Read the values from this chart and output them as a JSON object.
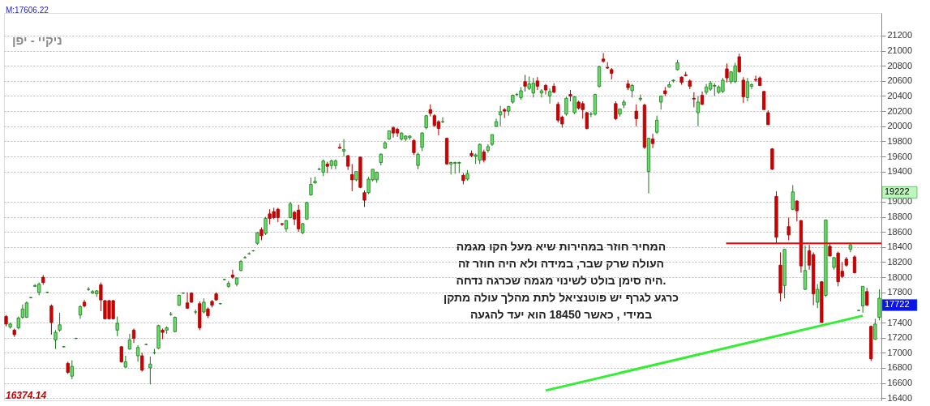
{
  "chart_data": {
    "type": "candlestick",
    "title": "ניקיי - יפן",
    "categories": [
      null,
      null,
      null,
      null,
      null,
      null,
      null,
      null,
      null,
      null,
      null,
      null,
      null,
      null,
      null,
      null,
      null,
      null,
      null,
      null,
      null,
      null,
      null,
      null,
      null,
      null,
      null,
      null,
      null,
      null,
      null,
      null,
      null,
      null,
      null,
      null,
      null,
      null,
      null,
      null,
      null,
      null,
      null,
      null,
      null,
      null,
      null,
      null,
      null,
      null,
      null,
      null,
      null,
      null,
      null,
      null,
      null,
      null,
      null,
      null,
      null,
      null,
      null,
      null,
      null,
      null,
      null,
      null,
      null,
      null,
      null,
      null,
      null,
      null,
      null,
      null,
      null,
      null,
      null,
      null,
      null,
      null,
      null,
      null,
      null,
      null,
      null,
      null,
      null,
      null,
      null,
      null,
      null,
      null,
      null,
      null,
      null,
      null,
      null,
      null,
      null,
      null,
      null,
      null,
      null,
      null,
      null,
      null,
      null,
      null,
      null,
      null,
      null,
      null,
      null,
      null,
      null,
      null,
      null,
      null,
      null,
      null,
      null,
      null,
      null,
      null,
      null,
      null,
      null,
      null,
      null,
      null,
      null,
      null,
      null,
      null,
      null,
      null,
      null,
      null,
      null,
      null,
      null,
      null,
      null,
      null,
      null,
      null,
      null,
      null,
      null,
      null,
      null,
      null,
      null,
      null,
      null,
      null,
      null,
      null,
      null,
      null,
      null,
      null,
      null,
      null,
      null,
      null,
      null,
      null,
      null,
      null,
      null,
      null,
      null,
      null,
      null,
      null,
      null,
      null,
      null,
      null,
      null,
      null,
      null,
      null,
      null,
      null,
      null,
      null,
      null,
      null,
      null,
      null,
      null,
      null,
      null,
      null,
      null,
      null,
      null,
      null,
      null,
      null,
      null,
      null,
      null,
      null,
      null,
      null,
      null,
      null,
      null
    ],
    "ohlc": [
      [
        17480,
        17500,
        17350,
        17380
      ],
      [
        17340,
        17400,
        17320,
        17380
      ],
      [
        17300,
        17320,
        17210,
        17240
      ],
      [
        17330,
        17480,
        17310,
        17460
      ],
      [
        17470,
        17640,
        17450,
        17580
      ],
      [
        17470,
        17680,
        17460,
        17660
      ],
      [
        17730,
        17740,
        17720,
        17730
      ],
      [
        17880,
        17910,
        17870,
        17890
      ],
      [
        17800,
        17930,
        17760,
        17910
      ],
      [
        18000,
        18030,
        17900,
        17930
      ],
      [
        17800,
        17810,
        17790,
        17800
      ],
      [
        17620,
        17640,
        17240,
        17400
      ],
      [
        17170,
        17300,
        17050,
        17270
      ],
      [
        17300,
        17530,
        17280,
        17370
      ],
      [
        17080,
        17090,
        17070,
        17080
      ],
      [
        16860,
        16880,
        16720,
        16740
      ],
      [
        16690,
        16900,
        16650,
        16820
      ],
      [
        17190,
        17200,
        17180,
        17190
      ],
      [
        17500,
        17630,
        17450,
        17610
      ],
      [
        17670,
        17700,
        17600,
        17620
      ],
      [
        17840,
        17870,
        17820,
        17840
      ],
      [
        17790,
        17830,
        17780,
        17810
      ],
      [
        17780,
        17830,
        17740,
        17820
      ],
      [
        17900,
        17930,
        17550,
        17700
      ],
      [
        17690,
        17700,
        17440,
        17450
      ],
      [
        17690,
        17700,
        17440,
        17450
      ],
      [
        17690,
        17700,
        17440,
        17450
      ],
      [
        17300,
        17480,
        17220,
        17390
      ],
      [
        17080,
        17090,
        16870,
        16880
      ],
      [
        16810,
        16960,
        16800,
        16880
      ],
      [
        17050,
        17250,
        17040,
        17170
      ],
      [
        17300,
        17320,
        17130,
        17190
      ],
      [
        16960,
        17100,
        16880,
        17070
      ],
      [
        16960,
        17000,
        16750,
        16770
      ],
      [
        17110,
        17120,
        17100,
        17110
      ],
      [
        16800,
        16950,
        16580,
        16850
      ],
      [
        17000,
        17050,
        16980,
        17000
      ],
      [
        17060,
        17370,
        17050,
        17360
      ],
      [
        17300,
        17320,
        17180,
        17270
      ],
      [
        17300,
        17350,
        17250,
        17330
      ],
      [
        17510,
        17540,
        17490,
        17510
      ],
      [
        17280,
        17480,
        17270,
        17470
      ],
      [
        17630,
        17770,
        17620,
        17760
      ],
      [
        17790,
        17800,
        17780,
        17790
      ],
      [
        17660,
        17800,
        17580,
        17590
      ],
      [
        17790,
        17800,
        17660,
        17670
      ],
      [
        17540,
        17570,
        17510,
        17540
      ],
      [
        17650,
        17680,
        17300,
        17330
      ],
      [
        17540,
        17720,
        17520,
        17670
      ],
      [
        17580,
        17600,
        17460,
        17490
      ],
      [
        17680,
        17700,
        17600,
        17630
      ],
      [
        17780,
        17800,
        17690,
        17700
      ],
      [
        17650,
        17660,
        17640,
        17650
      ],
      [
        17970,
        17980,
        17960,
        17970
      ],
      [
        17880,
        17950,
        17860,
        17920
      ],
      [
        18030,
        18100,
        17980,
        18000
      ],
      [
        17910,
        18000,
        17880,
        17990
      ],
      [
        18090,
        18230,
        18080,
        18210
      ],
      [
        18260,
        18280,
        18250,
        18260
      ],
      [
        18310,
        18330,
        18300,
        18310
      ],
      [
        18350,
        18360,
        18340,
        18350
      ],
      [
        18450,
        18600,
        18430,
        18590
      ],
      [
        18630,
        18660,
        18490,
        18550
      ],
      [
        18580,
        18800,
        18560,
        18780
      ],
      [
        18840,
        18900,
        18700,
        18780
      ],
      [
        18870,
        18920,
        18770,
        18790
      ],
      [
        18900,
        18920,
        18730,
        18790
      ],
      [
        18710,
        18720,
        18680,
        18700
      ],
      [
        18640,
        18760,
        18600,
        18750
      ],
      [
        18790,
        19000,
        18780,
        18970
      ],
      [
        18860,
        18880,
        18690,
        18770
      ],
      [
        18890,
        18960,
        18600,
        18640
      ],
      [
        18590,
        18720,
        18570,
        18710
      ],
      [
        18770,
        19000,
        18760,
        18990
      ],
      [
        19090,
        19320,
        19080,
        19230
      ],
      [
        19250,
        19330,
        19240,
        19270
      ],
      [
        19430,
        19450,
        19420,
        19430
      ],
      [
        19390,
        19560,
        19340,
        19540
      ],
      [
        19500,
        19530,
        19380,
        19470
      ],
      [
        19480,
        19560,
        19430,
        19540
      ],
      [
        19480,
        19560,
        19430,
        19540
      ],
      [
        19720,
        19770,
        19700,
        19710
      ],
      [
        19670,
        19830,
        19600,
        19690
      ],
      [
        19610,
        19620,
        19420,
        19470
      ],
      [
        19360,
        19500,
        19140,
        19290
      ],
      [
        19290,
        19400,
        19270,
        19400
      ],
      [
        19590,
        19600,
        19180,
        19190
      ],
      [
        19120,
        19150,
        18930,
        19020
      ],
      [
        19120,
        19330,
        19100,
        19300
      ],
      [
        19290,
        19430,
        19270,
        19430
      ],
      [
        19290,
        19400,
        19250,
        19390
      ],
      [
        19520,
        19640,
        19480,
        19630
      ],
      [
        19710,
        19800,
        19700,
        19780
      ],
      [
        19830,
        19940,
        19820,
        19940
      ],
      [
        19980,
        20000,
        19850,
        19910
      ],
      [
        19960,
        19980,
        19860,
        19910
      ],
      [
        19830,
        19920,
        19810,
        19910
      ],
      [
        19830,
        19880,
        19800,
        19870
      ],
      [
        19850,
        19880,
        19820,
        19870
      ],
      [
        19810,
        19830,
        19620,
        19650
      ],
      [
        19480,
        19650,
        19430,
        19630
      ],
      [
        19720,
        19920,
        19670,
        19910
      ],
      [
        19980,
        20150,
        19960,
        20140
      ],
      [
        20220,
        20290,
        20130,
        20170
      ],
      [
        20140,
        20160,
        19990,
        20010
      ],
      [
        20060,
        20080,
        19880,
        19970
      ],
      [
        20060,
        20120,
        20040,
        20060
      ],
      [
        19840,
        19850,
        19490,
        19500
      ],
      [
        19500,
        19530,
        19360,
        19520
      ],
      [
        19510,
        19530,
        19370,
        19520
      ],
      [
        19510,
        19530,
        19380,
        19520
      ],
      [
        19350,
        19380,
        19230,
        19280
      ],
      [
        19300,
        19420,
        19280,
        19370
      ],
      [
        19640,
        19680,
        19590,
        19610
      ],
      [
        19600,
        19640,
        19500,
        19620
      ],
      [
        19550,
        19770,
        19500,
        19760
      ],
      [
        19660,
        19690,
        19520,
        19550
      ],
      [
        19680,
        19760,
        19650,
        19730
      ],
      [
        19760,
        19890,
        19740,
        19890
      ],
      [
        20000,
        20100,
        19990,
        20060
      ],
      [
        20150,
        20270,
        20000,
        20190
      ],
      [
        20220,
        20240,
        20110,
        20200
      ],
      [
        20200,
        20270,
        20140,
        20260
      ],
      [
        20320,
        20420,
        20300,
        20410
      ],
      [
        20420,
        20440,
        20400,
        20420
      ],
      [
        20380,
        20520,
        20350,
        20470
      ],
      [
        20590,
        20680,
        20460,
        20530
      ],
      [
        20500,
        20660,
        20480,
        20560
      ],
      [
        20440,
        20640,
        20380,
        20570
      ],
      [
        20600,
        20650,
        20480,
        20530
      ],
      [
        20440,
        20490,
        20380,
        20470
      ],
      [
        20540,
        20560,
        20420,
        20480
      ],
      [
        20400,
        20500,
        20300,
        20460
      ],
      [
        20530,
        20570,
        20440,
        20450
      ],
      [
        20290,
        20320,
        20050,
        20080
      ],
      [
        20120,
        20140,
        19980,
        20030
      ],
      [
        20160,
        20390,
        20140,
        20370
      ],
      [
        20420,
        20480,
        20330,
        20400
      ],
      [
        20180,
        20400,
        20160,
        20390
      ],
      [
        20320,
        20340,
        20220,
        20240
      ],
      [
        20300,
        20330,
        20100,
        20220
      ],
      [
        20180,
        20190,
        19960,
        19970
      ],
      [
        20160,
        20190,
        20120,
        20160
      ],
      [
        20160,
        20430,
        20140,
        20420
      ],
      [
        20530,
        20800,
        20510,
        20790
      ],
      [
        20890,
        20970,
        20840,
        20860
      ],
      [
        20780,
        20850,
        20760,
        20770
      ],
      [
        20750,
        20770,
        20620,
        20700
      ],
      [
        20300,
        20330,
        20080,
        20100
      ],
      [
        20160,
        20230,
        20130,
        20230
      ],
      [
        20280,
        20350,
        20240,
        20320
      ],
      [
        20560,
        20610,
        20480,
        20510
      ],
      [
        20470,
        20560,
        20380,
        20540
      ],
      [
        20200,
        20290,
        20000,
        20100
      ],
      [
        20360,
        20420,
        20330,
        20370
      ],
      [
        20280,
        20300,
        19700,
        19720
      ],
      [
        19400,
        19850,
        19110,
        19840
      ],
      [
        19830,
        19900,
        19710,
        19770
      ],
      [
        19920,
        20140,
        19900,
        20080
      ],
      [
        20320,
        20400,
        20220,
        20400
      ],
      [
        20470,
        20520,
        20400,
        20430
      ],
      [
        20520,
        20590,
        20510,
        20550
      ],
      [
        20600,
        20620,
        20580,
        20610
      ],
      [
        20750,
        20880,
        20740,
        20840
      ],
      [
        20650,
        20660,
        20550,
        20580
      ],
      [
        20680,
        20720,
        20660,
        20670
      ],
      [
        20600,
        20620,
        20490,
        20530
      ],
      [
        20370,
        20450,
        20250,
        20360
      ],
      [
        20180,
        20400,
        20000,
        20320
      ],
      [
        20410,
        20460,
        20280,
        20290
      ],
      [
        20450,
        20560,
        20420,
        20520
      ],
      [
        20490,
        20600,
        20470,
        20570
      ],
      [
        20530,
        20570,
        20400,
        20540
      ],
      [
        20450,
        20540,
        20430,
        20520
      ],
      [
        20460,
        20640,
        20440,
        20610
      ],
      [
        20760,
        20830,
        20580,
        20640
      ],
      [
        20590,
        20730,
        20560,
        20720
      ],
      [
        20590,
        20840,
        20570,
        20800
      ],
      [
        20920,
        20960,
        20710,
        20720
      ],
      [
        20610,
        20650,
        20310,
        20390
      ],
      [
        20380,
        20640,
        20330,
        20590
      ],
      [
        20530,
        20570,
        20490,
        20550
      ],
      [
        20620,
        20670,
        20590,
        20610
      ],
      [
        20640,
        20660,
        20530,
        20540
      ],
      [
        20460,
        20470,
        20220,
        20220
      ],
      [
        20180,
        20210,
        20020,
        20020
      ],
      [
        19700,
        19710,
        19420,
        19430
      ],
      [
        19070,
        19140,
        18440,
        18530
      ],
      [
        18160,
        18330,
        17680,
        17790
      ],
      [
        17890,
        18370,
        17720,
        18370
      ],
      [
        18670,
        18790,
        18490,
        18560
      ],
      [
        18900,
        19220,
        18890,
        19130
      ],
      [
        19010,
        19020,
        18740,
        18880
      ],
      [
        18750,
        18760,
        18060,
        18150
      ],
      [
        17840,
        18420,
        17830,
        18090
      ],
      [
        18350,
        18430,
        18100,
        18160
      ],
      [
        18300,
        18330,
        17630,
        17780
      ],
      [
        17670,
        17910,
        17590,
        17840
      ],
      [
        17940,
        17950,
        17400,
        17400
      ],
      [
        17760,
        18760,
        17740,
        18760
      ],
      [
        18410,
        18440,
        18280,
        18280
      ],
      [
        18130,
        18270,
        18100,
        18260
      ],
      [
        18320,
        18340,
        17880,
        17940
      ],
      [
        18080,
        18200,
        17990,
        18010
      ],
      [
        18240,
        18270,
        18140,
        18160
      ],
      [
        18370,
        18460,
        18330,
        18430
      ],
      [
        18270,
        18290,
        18050,
        18060
      ],
      [
        17560,
        17570,
        17550,
        17560
      ],
      [
        17620,
        17880,
        17530,
        17880
      ],
      [
        17810,
        17860,
        17620,
        17630
      ],
      [
        17350,
        17360,
        16890,
        16920
      ],
      [
        17180,
        17450,
        17170,
        17380
      ],
      [
        17470,
        17840,
        17430,
        17722
      ]
    ],
    "series": [
      {
        "type": "line",
        "color": "#33ee33",
        "values": [
          null,
          null,
          null,
          null,
          null,
          null,
          null,
          null,
          null,
          null,
          null,
          null,
          null,
          null,
          null,
          null,
          null,
          null,
          null,
          null,
          null,
          null,
          null,
          null,
          null,
          null,
          null,
          null,
          null,
          null,
          null,
          null,
          null,
          null,
          null,
          null,
          null,
          null,
          null,
          null,
          null,
          null,
          null,
          null,
          null,
          null,
          null,
          null,
          null,
          null,
          null,
          null,
          null,
          null,
          null,
          null,
          null,
          null,
          null,
          null,
          null,
          null,
          null,
          null,
          null,
          null,
          null,
          null,
          null,
          null,
          null,
          null,
          null,
          null,
          null,
          null,
          null,
          null,
          null,
          null,
          null,
          null,
          null,
          null,
          null,
          null,
          null,
          null,
          null,
          null,
          null,
          null,
          null,
          null,
          null,
          null,
          null,
          null,
          null,
          null,
          null,
          null,
          null,
          null,
          null,
          null,
          null,
          null,
          null,
          null,
          null,
          null,
          null,
          null,
          null,
          null,
          null,
          null,
          null,
          null,
          null,
          null,
          null,
          null,
          null,
          null,
          null,
          null,
          null,
          null,
          null,
          16500,
          null,
          null,
          null,
          null,
          null,
          null,
          null,
          null,
          null,
          null,
          null,
          null,
          null,
          null,
          null,
          null,
          null,
          null,
          null,
          null,
          null,
          null,
          null,
          null,
          null,
          null,
          null,
          null,
          null,
          null,
          null,
          null,
          null,
          null,
          null,
          null,
          null,
          null,
          null,
          null,
          null,
          null,
          null,
          null,
          null,
          null,
          null,
          null,
          null,
          null,
          null,
          null,
          null,
          null,
          null,
          null,
          null,
          null,
          null,
          null,
          null,
          null,
          null,
          null,
          null,
          null,
          null,
          null,
          null,
          null,
          null,
          null,
          null,
          null,
          null,
          null,
          17490,
          null,
          null,
          null,
          null
        ]
      }
    ],
    "ylim": [
      16370,
      21500
    ],
    "yticks": [
      16400,
      16600,
      16800,
      17000,
      17200,
      17400,
      17800,
      18000,
      18200,
      18400,
      18600,
      18800,
      19000,
      19400,
      19600,
      19800,
      20000,
      20200,
      20400,
      20600,
      20800,
      21000,
      21200
    ],
    "grid": "y",
    "tick_labels": "y",
    "ref_lines": [
      {
        "axis": "y",
        "value": 18450,
        "color": "#ff0000"
      }
    ],
    "annotations": [
      "M:17606.22",
      "16374.14",
      "19222",
      "17722",
      "המחיר חוזר במהירות שיא מעל הקו מגמה\nהעולה שרק שבר, במידה ולא היה חוזר זה\nהיה סימן בולט לשינוי מגמה שכרגה נדחה.\nכרגע לגרף יש פוטנציאל לתת מהלך עולה מתקן\nבמידי , כאשר 18450 הוא יעד להגעה"
    ]
  }
}
